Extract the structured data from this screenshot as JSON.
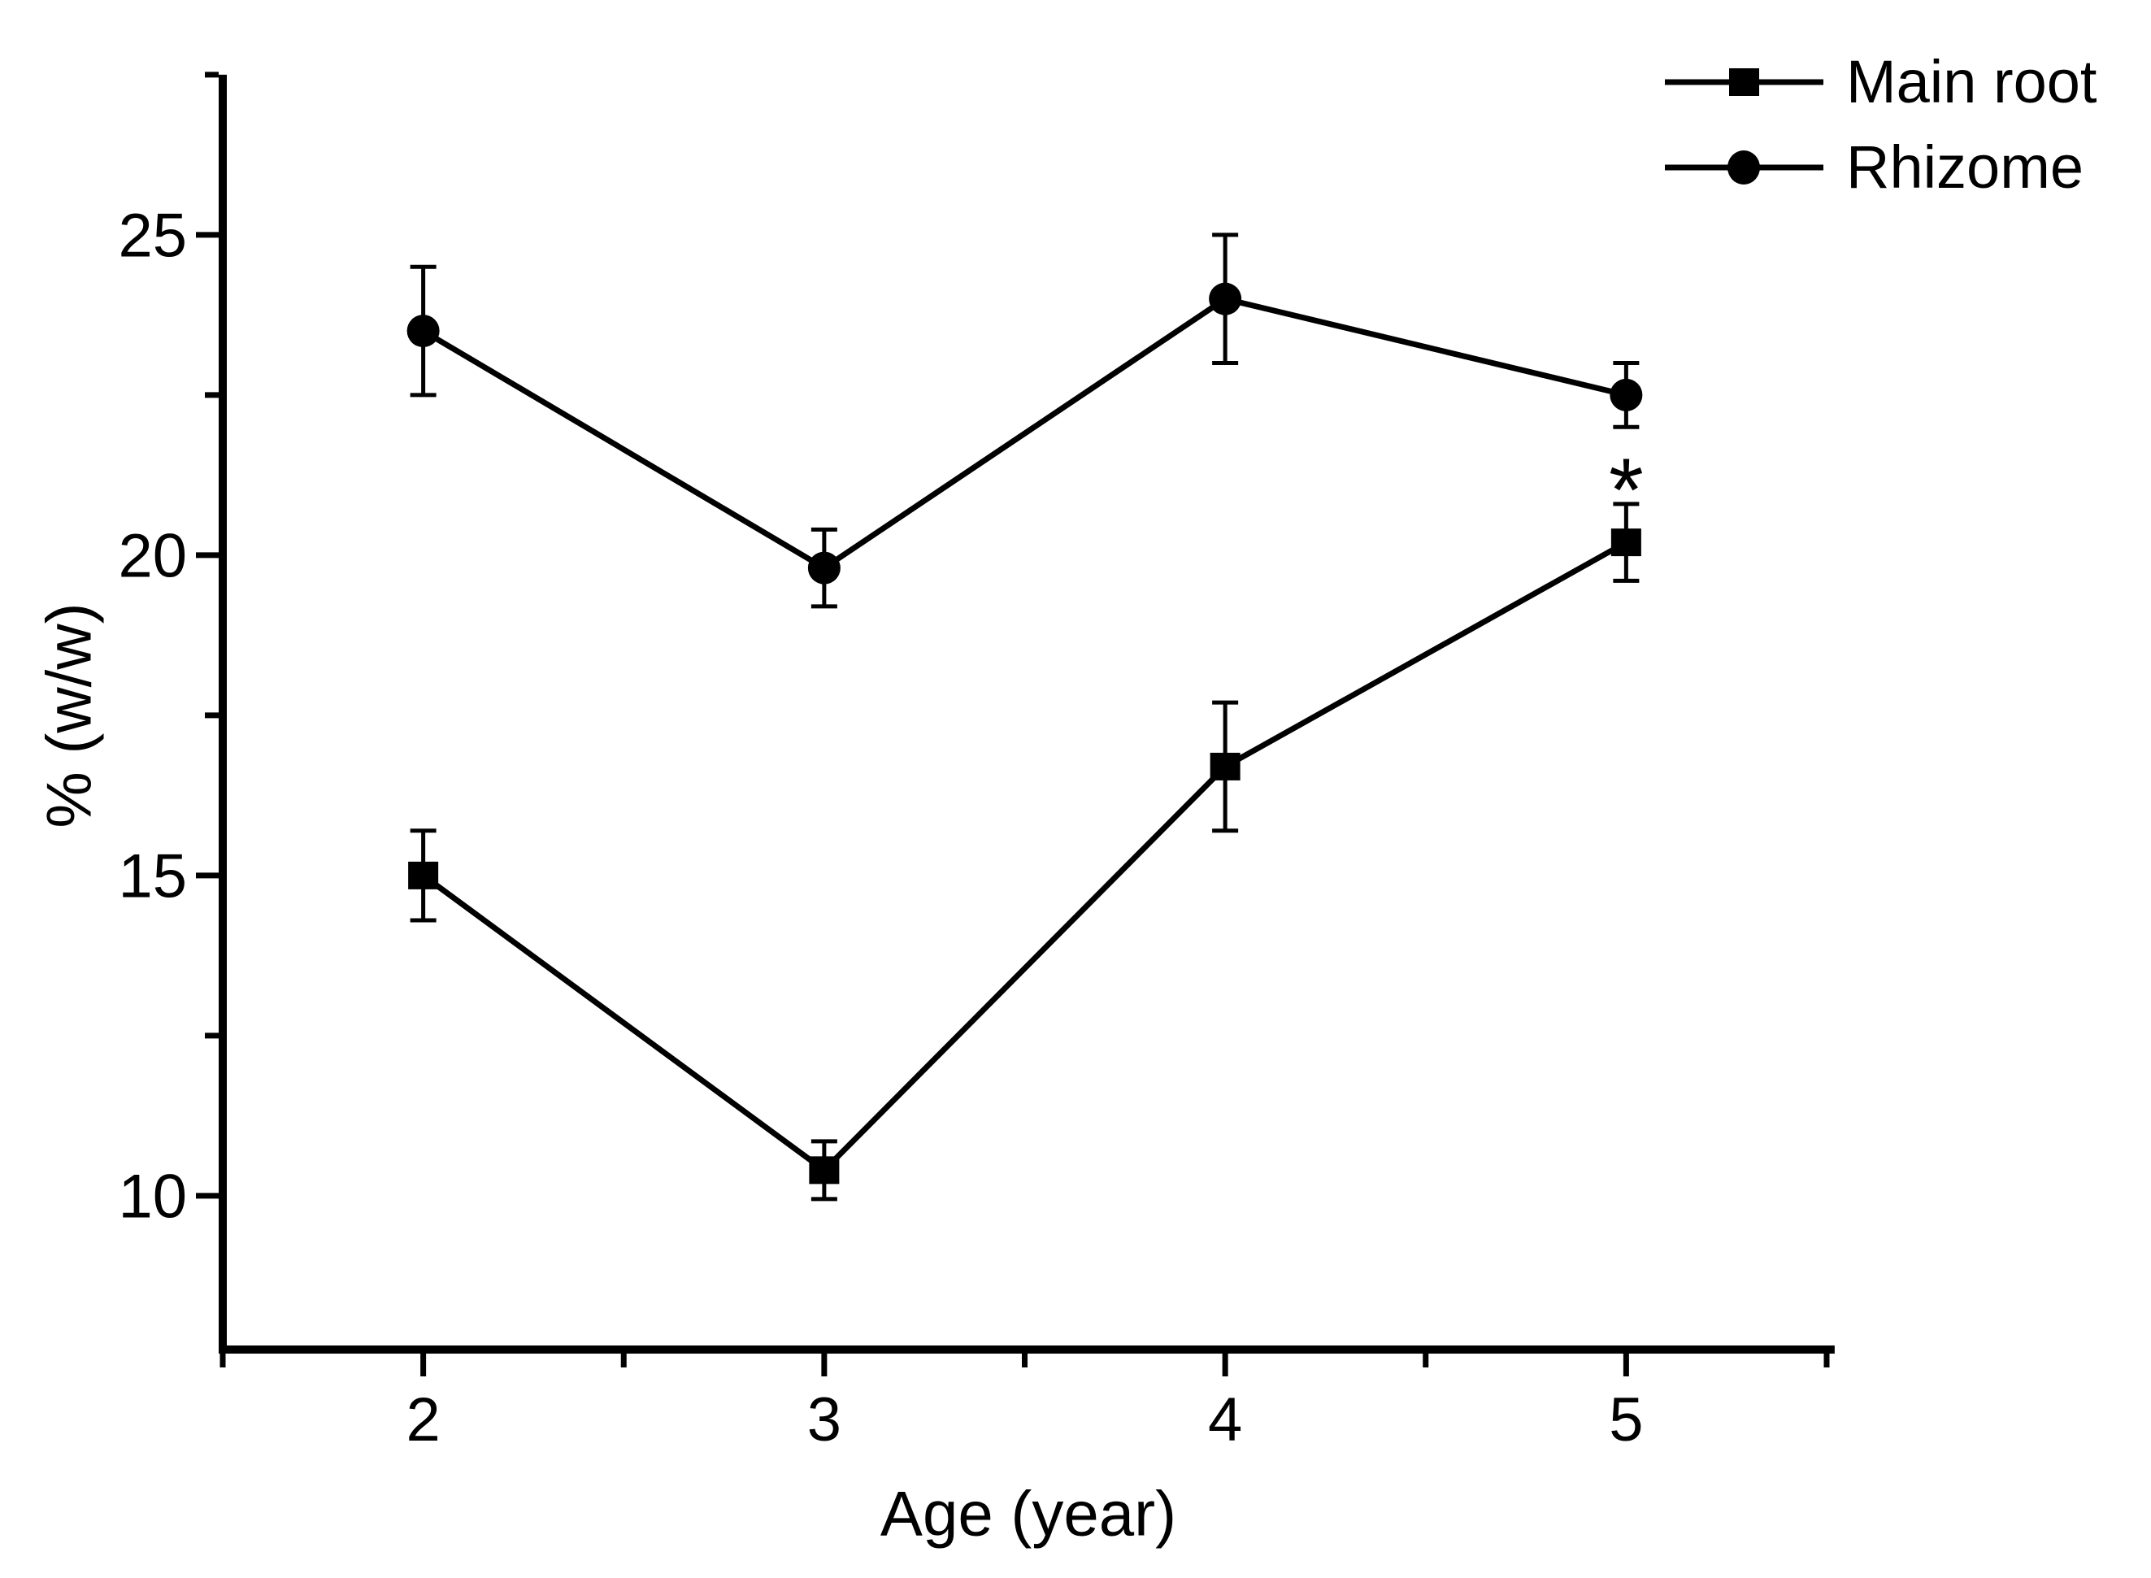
{
  "chart_data": {
    "type": "line",
    "title": "",
    "xlabel": "Age (year)",
    "ylabel": "% (w/w)",
    "x": [
      2,
      3,
      4,
      5
    ],
    "series": [
      {
        "name": "Main root",
        "marker": "square",
        "values": [
          15.0,
          10.4,
          16.7,
          20.2
        ],
        "errors": [
          0.7,
          0.45,
          1.0,
          0.6
        ]
      },
      {
        "name": "Rhizome",
        "marker": "circle",
        "values": [
          23.5,
          19.8,
          24.0,
          22.5
        ],
        "errors": [
          1.0,
          0.6,
          1.0,
          0.5
        ]
      }
    ],
    "xlim": [
      1.5,
      5.52
    ],
    "ylim": [
      7.6,
      27.5
    ],
    "x_major_ticks": [
      2,
      3,
      4,
      5
    ],
    "x_minor_ticks": [
      1.5,
      2.5,
      3.5,
      4.5,
      5.5
    ],
    "y_major_ticks": [
      10,
      15,
      20,
      25
    ],
    "y_minor_ticks": [
      12.5,
      17.5,
      22.5,
      27.5
    ],
    "x_tick_labels": [
      "2",
      "3",
      "4",
      "5"
    ],
    "y_tick_labels": [
      "10",
      "15",
      "20",
      "25"
    ],
    "grid": false,
    "legend_position": "top-right",
    "annotations": [
      {
        "text": "*",
        "x": 5,
        "y": 21.35
      }
    ],
    "line_color": "#000000",
    "background_color": "#ffffff"
  }
}
